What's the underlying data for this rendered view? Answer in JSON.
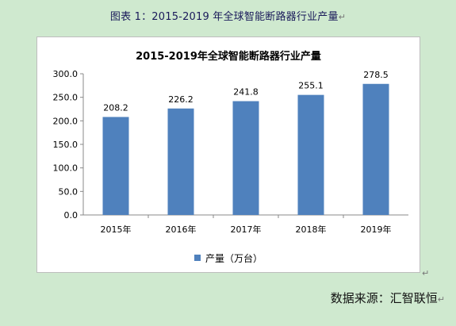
{
  "caption": {
    "text": "图表 1：2015-2019 年全球智能断路器行业产量",
    "mark": "↵"
  },
  "source": {
    "text": "数据来源：汇智联恒",
    "mark": "↵"
  },
  "box_mark": "↵",
  "chart_data": {
    "type": "bar",
    "title": "2015-2019年全球智能断路器行业产量",
    "categories": [
      "2015年",
      "2016年",
      "2017年",
      "2018年",
      "2019年"
    ],
    "series": [
      {
        "name": "产量（万台）",
        "values": [
          208.2,
          226.2,
          241.8,
          255.1,
          278.5
        ],
        "color": "#4f81bd"
      }
    ],
    "data_labels": [
      "208.2",
      "226.2",
      "241.8",
      "255.1",
      "278.5"
    ],
    "yticks": [
      "0.0",
      "50.0",
      "100.0",
      "150.0",
      "200.0",
      "250.0",
      "300.0"
    ],
    "ylim": [
      0,
      300
    ],
    "grid": false,
    "legend": "bottom"
  }
}
